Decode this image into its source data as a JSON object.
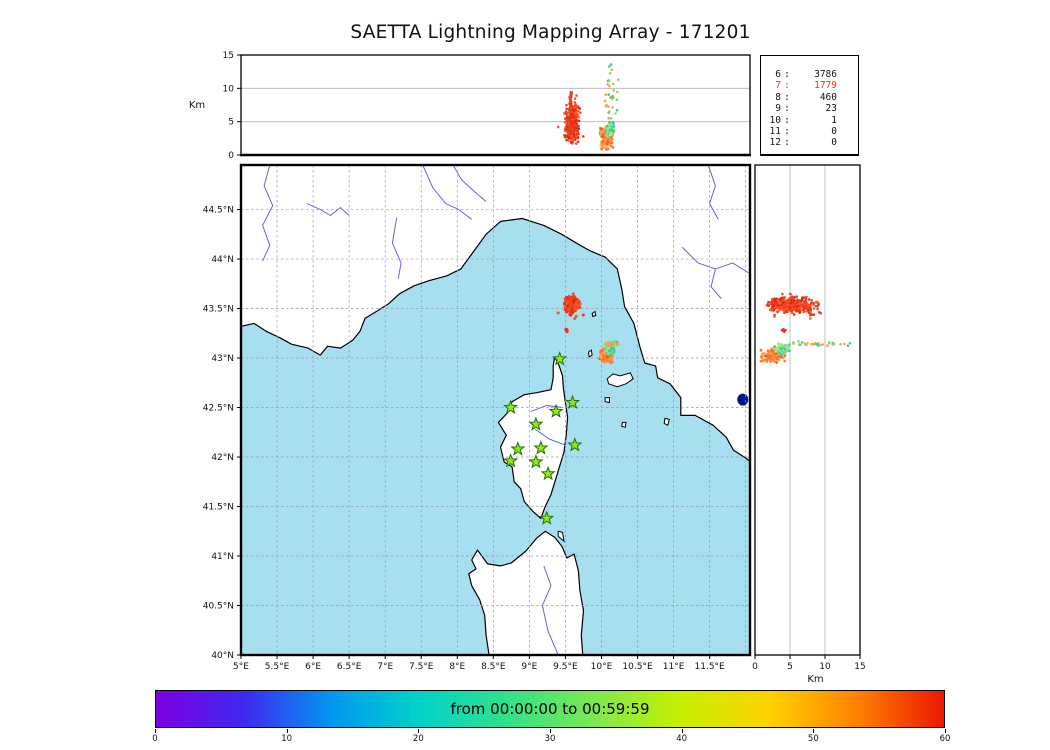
{
  "title": "SAETTA Lightning Mapping Array - 171201",
  "top_panel": {
    "ylabel": "Km",
    "yticks": [
      "0",
      "5",
      "10",
      "15"
    ],
    "ylim": [
      0,
      15
    ]
  },
  "right_panel": {
    "xlabel": "Km",
    "xticks": [
      "0",
      "5",
      "10",
      "15"
    ],
    "xlim": [
      0,
      15
    ]
  },
  "stats_panel": {
    "highlight_color": "#e8321e",
    "rows": [
      {
        "level": "6",
        "count": "3786",
        "highlight": false
      },
      {
        "level": "7",
        "count": "1779",
        "highlight": true
      },
      {
        "level": "8",
        "count": "460",
        "highlight": false
      },
      {
        "level": "9",
        "count": "23",
        "highlight": false
      },
      {
        "level": "10",
        "count": "1",
        "highlight": false
      },
      {
        "level": "11",
        "count": "0",
        "highlight": false
      },
      {
        "level": "12",
        "count": "0",
        "highlight": false
      }
    ]
  },
  "map_panel": {
    "lon_range": [
      5,
      12.06
    ],
    "lat_range": [
      40,
      44.95
    ],
    "lon_ticks": [
      {
        "label": "5°E",
        "lon": 5
      },
      {
        "label": "5.5°E",
        "lon": 5.5
      },
      {
        "label": "6°E",
        "lon": 6
      },
      {
        "label": "6.5°E",
        "lon": 6.5
      },
      {
        "label": "7°E",
        "lon": 7
      },
      {
        "label": "7.5°E",
        "lon": 7.5
      },
      {
        "label": "8°E",
        "lon": 8
      },
      {
        "label": "8.5°E",
        "lon": 8.5
      },
      {
        "label": "9°E",
        "lon": 9
      },
      {
        "label": "9.5°E",
        "lon": 9.5
      },
      {
        "label": "10°E",
        "lon": 10
      },
      {
        "label": "10.5°E",
        "lon": 10.5
      },
      {
        "label": "11°E",
        "lon": 11
      },
      {
        "label": "11.5°E",
        "lon": 11.5
      }
    ],
    "lat_ticks": [
      {
        "label": "44.5°N",
        "lat": 44.5
      },
      {
        "label": "44°N",
        "lat": 44
      },
      {
        "label": "43.5°N",
        "lat": 43.5
      },
      {
        "label": "43°N",
        "lat": 43
      },
      {
        "label": "42.5°N",
        "lat": 42.5
      },
      {
        "label": "42°N",
        "lat": 42
      },
      {
        "label": "41.5°N",
        "lat": 41.5
      },
      {
        "label": "41°N",
        "lat": 41
      },
      {
        "label": "40.5°N",
        "lat": 40.5
      },
      {
        "label": "40°N",
        "lat": 40
      }
    ],
    "sea_color": "#a8dff0",
    "land_color": "#ffffff",
    "river_color": "#5555dd",
    "lake_color": "#00128c",
    "grid_color": "#999999",
    "station_fill": "#96e80a",
    "station_stroke": "#1e6e14"
  },
  "colorbar": {
    "label": "from 00:00:00 to 00:59:59",
    "ticks": [
      "0",
      "10",
      "20",
      "30",
      "40",
      "50",
      "60"
    ],
    "gradient": [
      "#7c00e0",
      "#4128f0",
      "#0096f0",
      "#00d2c8",
      "#32e08c",
      "#7ce850",
      "#c8f000",
      "#ffd200",
      "#ff8200",
      "#ec1800"
    ]
  },
  "chart_data": {
    "type": "scatter",
    "title": "SAETTA Lightning Mapping Array - 171201",
    "panels": {
      "top": {
        "x": "longitude",
        "y": "altitude_km",
        "ylim": [
          0,
          15
        ]
      },
      "map": {
        "x": "longitude",
        "y": "latitude",
        "xlim": [
          5,
          12.06
        ],
        "ylim": [
          40,
          44.95
        ]
      },
      "right": {
        "x": "altitude_km",
        "y": "latitude",
        "xlim": [
          0,
          15
        ]
      }
    },
    "time_axis_minutes": [
      0,
      60
    ],
    "time_range_label": "from 00:00:00 to 00:59:59",
    "source_counts_by_level": {
      "6": 3786,
      "7": 1779,
      "8": 460,
      "9": 23,
      "10": 1,
      "11": 0,
      "12": 0
    },
    "clusters": [
      {
        "name": "cell-A-core",
        "lon": [
          9.48,
          9.7
        ],
        "lat": [
          43.46,
          43.63
        ],
        "alt": [
          1.4,
          7.6
        ],
        "colors": [
          "#e63218",
          "#f04628",
          "#ff5a28",
          "#d42814"
        ],
        "n": 300
      },
      {
        "name": "cell-A-column",
        "lon": [
          9.555,
          9.59
        ],
        "lat": [
          43.42,
          43.6
        ],
        "alt": [
          3.8,
          10.3
        ],
        "colors": [
          "#e63218",
          "#f04628"
        ],
        "n": 70
      },
      {
        "name": "cell-A-sparse",
        "lon": [
          9.35,
          9.85
        ],
        "lat": [
          43.38,
          43.68
        ],
        "alt": [
          1.0,
          9.0
        ],
        "colors": [
          "#e63218",
          "#f0582c"
        ],
        "n": 26
      },
      {
        "name": "cell-B-orange",
        "lon": [
          9.96,
          10.18
        ],
        "lat": [
          42.95,
          43.1
        ],
        "alt": [
          0.6,
          4.6
        ],
        "colors": [
          "#ff8c3c",
          "#ff7434",
          "#f25c24",
          "#ffa048"
        ],
        "n": 150
      },
      {
        "name": "cell-B-teal",
        "lon": [
          10.03,
          10.2
        ],
        "lat": [
          43.02,
          43.16
        ],
        "alt": [
          2.6,
          5.2
        ],
        "colors": [
          "#3cc89c",
          "#5cd8ac",
          "#8ce08c",
          "#b4e86c"
        ],
        "n": 70
      },
      {
        "name": "cell-B-anvil",
        "lon": [
          9.98,
          10.24
        ],
        "lat": [
          43.12,
          43.17
        ],
        "alt": [
          4.5,
          14.4
        ],
        "colors": [
          "#3cc89c",
          "#84d878",
          "#ffa048"
        ],
        "n": 32
      },
      {
        "name": "isolated-pair",
        "lon": [
          9.495,
          9.535
        ],
        "lat": [
          43.26,
          43.3
        ],
        "alt": [
          3.6,
          4.5
        ],
        "colors": [
          "#e63218"
        ],
        "n": 7
      }
    ],
    "stations_lon_lat": [
      [
        9.42,
        42.99
      ],
      [
        8.74,
        42.5
      ],
      [
        9.09,
        42.33
      ],
      [
        9.37,
        42.46
      ],
      [
        9.6,
        42.55
      ],
      [
        8.84,
        42.08
      ],
      [
        9.16,
        42.09
      ],
      [
        9.63,
        42.12
      ],
      [
        8.74,
        41.96
      ],
      [
        9.09,
        41.95
      ],
      [
        9.26,
        41.83
      ],
      [
        9.24,
        41.38
      ]
    ]
  },
  "geo": {
    "mainland": [
      [
        5.0,
        43.32
      ],
      [
        5.18,
        43.35
      ],
      [
        5.35,
        43.27
      ],
      [
        5.55,
        43.2
      ],
      [
        5.7,
        43.14
      ],
      [
        5.93,
        43.1
      ],
      [
        6.1,
        43.03
      ],
      [
        6.2,
        43.12
      ],
      [
        6.38,
        43.1
      ],
      [
        6.55,
        43.18
      ],
      [
        6.65,
        43.27
      ],
      [
        6.72,
        43.4
      ],
      [
        6.9,
        43.48
      ],
      [
        7.05,
        43.55
      ],
      [
        7.2,
        43.65
      ],
      [
        7.4,
        43.73
      ],
      [
        7.6,
        43.78
      ],
      [
        7.85,
        43.83
      ],
      [
        8.05,
        43.9
      ],
      [
        8.2,
        44.05
      ],
      [
        8.4,
        44.25
      ],
      [
        8.6,
        44.38
      ],
      [
        8.9,
        44.41
      ],
      [
        9.2,
        44.34
      ],
      [
        9.45,
        44.25
      ],
      [
        9.7,
        44.14
      ],
      [
        9.85,
        44.08
      ],
      [
        10.05,
        44.02
      ],
      [
        10.22,
        43.9
      ],
      [
        10.28,
        43.7
      ],
      [
        10.32,
        43.52
      ],
      [
        10.45,
        43.35
      ],
      [
        10.53,
        43.12
      ],
      [
        10.6,
        42.95
      ],
      [
        10.75,
        42.92
      ],
      [
        10.78,
        42.8
      ],
      [
        10.95,
        42.74
      ],
      [
        11.1,
        42.6
      ],
      [
        11.1,
        42.42
      ],
      [
        11.3,
        42.42
      ],
      [
        11.55,
        42.32
      ],
      [
        11.73,
        42.2
      ],
      [
        11.83,
        42.07
      ],
      [
        12.0,
        41.99
      ],
      [
        12.12,
        41.92
      ],
      [
        12.12,
        45.0
      ],
      [
        4.95,
        45.0
      ]
    ],
    "corsica": [
      [
        9.35,
        43.01
      ],
      [
        9.41,
        42.93
      ],
      [
        9.46,
        42.82
      ],
      [
        9.47,
        42.7
      ],
      [
        9.5,
        42.55
      ],
      [
        9.53,
        42.4
      ],
      [
        9.51,
        42.22
      ],
      [
        9.48,
        42.05
      ],
      [
        9.4,
        41.86
      ],
      [
        9.3,
        41.62
      ],
      [
        9.22,
        41.5
      ],
      [
        9.16,
        41.38
      ],
      [
        9.05,
        41.45
      ],
      [
        8.93,
        41.55
      ],
      [
        8.88,
        41.68
      ],
      [
        8.79,
        41.75
      ],
      [
        8.76,
        41.9
      ],
      [
        8.65,
        41.95
      ],
      [
        8.6,
        42.1
      ],
      [
        8.68,
        42.22
      ],
      [
        8.57,
        42.35
      ],
      [
        8.7,
        42.45
      ],
      [
        8.76,
        42.56
      ],
      [
        8.93,
        42.63
      ],
      [
        9.1,
        42.65
      ],
      [
        9.3,
        42.68
      ],
      [
        9.33,
        42.8
      ],
      [
        9.33,
        42.92
      ]
    ],
    "sardinia": [
      [
        8.46,
        39.9
      ],
      [
        8.4,
        40.2
      ],
      [
        8.38,
        40.4
      ],
      [
        8.31,
        40.56
      ],
      [
        8.2,
        40.7
      ],
      [
        8.16,
        40.82
      ],
      [
        8.26,
        40.87
      ],
      [
        8.2,
        40.96
      ],
      [
        8.28,
        41.06
      ],
      [
        8.42,
        40.92
      ],
      [
        8.6,
        40.9
      ],
      [
        8.75,
        40.93
      ],
      [
        8.95,
        41.05
      ],
      [
        9.1,
        41.18
      ],
      [
        9.22,
        41.25
      ],
      [
        9.35,
        41.19
      ],
      [
        9.45,
        41.1
      ],
      [
        9.52,
        40.98
      ],
      [
        9.62,
        41.02
      ],
      [
        9.68,
        40.85
      ],
      [
        9.7,
        40.65
      ],
      [
        9.75,
        40.45
      ],
      [
        9.72,
        40.2
      ],
      [
        9.75,
        39.9
      ]
    ],
    "islets": [
      [
        [
          10.1,
          42.74
        ],
        [
          10.22,
          42.71
        ],
        [
          10.34,
          42.74
        ],
        [
          10.44,
          42.79
        ],
        [
          10.4,
          42.85
        ],
        [
          10.26,
          42.82
        ],
        [
          10.16,
          42.84
        ],
        [
          10.08,
          42.79
        ]
      ],
      [
        [
          9.83,
          43.01
        ],
        [
          9.87,
          43.03
        ],
        [
          9.86,
          43.08
        ],
        [
          9.82,
          43.06
        ]
      ],
      [
        [
          9.88,
          43.42
        ],
        [
          9.92,
          43.43
        ],
        [
          9.91,
          43.47
        ],
        [
          9.87,
          43.45
        ]
      ],
      [
        [
          10.05,
          42.56
        ],
        [
          10.11,
          42.55
        ],
        [
          10.11,
          42.6
        ],
        [
          10.05,
          42.6
        ]
      ],
      [
        [
          10.28,
          42.31
        ],
        [
          10.33,
          42.3
        ],
        [
          10.34,
          42.35
        ],
        [
          10.29,
          42.35
        ]
      ],
      [
        [
          10.87,
          42.34
        ],
        [
          10.92,
          42.32
        ],
        [
          10.94,
          42.38
        ],
        [
          10.88,
          42.39
        ]
      ],
      [
        [
          9.4,
          41.2
        ],
        [
          9.48,
          41.15
        ],
        [
          9.46,
          41.24
        ],
        [
          9.4,
          41.25
        ]
      ]
    ],
    "rivers": [
      [
        [
          5.4,
          44.95
        ],
        [
          5.32,
          44.74
        ],
        [
          5.44,
          44.54
        ],
        [
          5.3,
          44.34
        ],
        [
          5.4,
          44.14
        ],
        [
          5.3,
          43.98
        ]
      ],
      [
        [
          5.92,
          44.56
        ],
        [
          6.1,
          44.5
        ],
        [
          6.24,
          44.44
        ],
        [
          6.38,
          44.52
        ],
        [
          6.5,
          44.44
        ]
      ],
      [
        [
          7.52,
          44.95
        ],
        [
          7.66,
          44.72
        ],
        [
          7.84,
          44.56
        ],
        [
          8.02,
          44.5
        ],
        [
          8.2,
          44.4
        ]
      ],
      [
        [
          7.94,
          44.95
        ],
        [
          8.06,
          44.8
        ],
        [
          8.24,
          44.68
        ],
        [
          8.4,
          44.58
        ]
      ],
      [
        [
          7.16,
          44.42
        ],
        [
          7.1,
          44.16
        ],
        [
          7.22,
          43.96
        ],
        [
          7.18,
          43.8
        ]
      ],
      [
        [
          11.12,
          44.12
        ],
        [
          11.34,
          43.96
        ],
        [
          11.58,
          43.9
        ],
        [
          11.82,
          43.96
        ],
        [
          12.04,
          43.86
        ]
      ],
      [
        [
          11.58,
          43.9
        ],
        [
          11.52,
          43.72
        ],
        [
          11.66,
          43.6
        ]
      ],
      [
        [
          11.48,
          44.95
        ],
        [
          11.58,
          44.74
        ],
        [
          11.5,
          44.56
        ],
        [
          11.62,
          44.4
        ]
      ],
      [
        [
          9.4,
          40.0
        ],
        [
          9.26,
          40.24
        ],
        [
          9.18,
          40.5
        ],
        [
          9.3,
          40.7
        ],
        [
          9.2,
          40.9
        ]
      ],
      [
        [
          9.08,
          42.28
        ],
        [
          9.28,
          42.18
        ],
        [
          9.5,
          42.12
        ]
      ],
      [
        [
          9.02,
          42.46
        ],
        [
          9.24,
          42.52
        ],
        [
          9.46,
          42.5
        ]
      ]
    ],
    "lake": {
      "lon": 11.96,
      "lat": 42.58
    }
  }
}
